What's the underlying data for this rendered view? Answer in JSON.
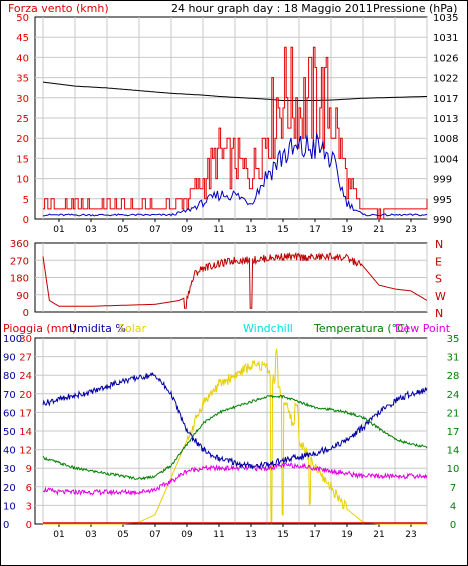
{
  "colors": {
    "wind": "#e00000",
    "gust": "#0000c0",
    "pressure": "#000000",
    "direction": "#c00000",
    "rain": "#e00000",
    "humidity": "#0000a0",
    "solar": "#e8d000",
    "windchill": "#00e0e0",
    "temperature": "#008000",
    "dewpoint": "#e000e0",
    "grid": "#c8c8c8"
  },
  "chart_data": [
    {
      "type": "line",
      "title": "24 hour graph day : 18 Maggio 2011",
      "ylabel": "Forza vento (kmh)",
      "y2label": "Pressione (hPa)",
      "ylim": [
        0,
        50
      ],
      "y2lim": [
        990,
        1035
      ],
      "y_ticks": [
        "0",
        "5",
        "10",
        "15",
        "20",
        "25",
        "30",
        "35",
        "40",
        "45",
        "50"
      ],
      "y2_ticks": [
        "990",
        "995",
        "999",
        "1004",
        "1008",
        "1013",
        "1017",
        "1022",
        "1026",
        "1031",
        "1035"
      ],
      "x_ticks": [
        "01",
        "03",
        "05",
        "07",
        "09",
        "11",
        "13",
        "15",
        "17",
        "19",
        "21",
        "23"
      ],
      "x": [
        0,
        2,
        4,
        6,
        8,
        9,
        10,
        11,
        12,
        13,
        14,
        15,
        16,
        17,
        18,
        19,
        20,
        22,
        24
      ],
      "series": [
        {
          "key": "wind",
          "values": [
            4,
            3,
            3,
            3,
            3,
            5,
            9,
            16,
            14,
            10,
            22,
            32,
            28,
            30,
            28,
            9,
            2,
            2,
            3
          ]
        },
        {
          "key": "gust",
          "values": [
            1,
            1,
            1,
            1,
            1,
            2,
            4,
            6,
            6,
            4,
            11,
            16,
            17,
            18,
            15,
            4,
            1,
            1,
            1
          ]
        },
        {
          "key": "pressure",
          "values": [
            1020.5,
            1019.6,
            1019.2,
            1018.6,
            1018.0,
            1017.8,
            1017.6,
            1017.3,
            1017.1,
            1016.9,
            1016.7,
            1016.4,
            1016.4,
            1016.4,
            1016.5,
            1016.7,
            1016.9,
            1017.1,
            1017.3
          ]
        }
      ]
    },
    {
      "type": "line",
      "ylim": [
        0,
        360
      ],
      "y_ticks": [
        "0",
        "90",
        "180",
        "270",
        "360"
      ],
      "compass": [
        "N",
        "W",
        "S",
        "E",
        "N"
      ],
      "x": [
        0,
        0.4,
        1,
        3,
        5,
        7,
        8.5,
        9,
        9.5,
        10,
        11,
        12,
        13,
        14,
        15,
        16,
        17,
        18,
        19,
        20,
        21,
        22,
        23,
        24
      ],
      "series": [
        {
          "key": "direction",
          "values": [
            290,
            60,
            30,
            30,
            35,
            40,
            60,
            80,
            200,
            230,
            250,
            270,
            270,
            280,
            290,
            285,
            285,
            290,
            280,
            240,
            140,
            120,
            110,
            60
          ]
        }
      ]
    },
    {
      "type": "line",
      "legend": [
        "Pioggia (mm)",
        "Umidita %",
        "Solar",
        "Windchill",
        "Temperatura (°C)",
        "Dew Point"
      ],
      "y_left_outer": [
        "0",
        "10",
        "20",
        "30",
        "40",
        "50",
        "60",
        "70",
        "80",
        "90",
        "100"
      ],
      "y_left_inner": [
        "0",
        "3",
        "6",
        "9",
        "12",
        "14",
        "17",
        "20",
        "24",
        "27",
        "30"
      ],
      "y_right": [
        "0",
        "4",
        "7",
        "10",
        "14",
        "17",
        "21",
        "24",
        "28",
        "31",
        "35"
      ],
      "humidity_range": [
        0,
        100
      ],
      "temperature_range": [
        0,
        35
      ],
      "solar_range": [
        0,
        10
      ],
      "x": [
        0,
        1,
        2,
        3,
        4,
        5,
        6,
        7,
        8,
        9,
        10,
        11,
        12,
        13,
        14,
        15,
        16,
        17,
        18,
        19,
        20,
        21,
        22,
        23,
        24
      ],
      "series": [
        {
          "key": "humidity",
          "values": [
            65,
            67,
            69,
            71,
            74,
            77,
            79,
            80,
            70,
            50,
            40,
            35,
            33,
            31,
            32,
            34,
            36,
            38,
            41,
            45,
            52,
            60,
            66,
            70,
            72
          ]
        },
        {
          "key": "temperature",
          "values": [
            12.5,
            11.5,
            10.5,
            10,
            9.5,
            9,
            8.5,
            9,
            11,
            15,
            19,
            21,
            22,
            23,
            24,
            24,
            23,
            22,
            21.5,
            21,
            20,
            18,
            16,
            15,
            14.5
          ]
        },
        {
          "key": "dewpoint",
          "values": [
            6.5,
            6,
            6,
            6,
            6,
            6,
            6,
            6.5,
            8,
            10,
            10.5,
            10.5,
            10.5,
            10.5,
            10.5,
            11,
            11,
            10.5,
            10,
            9.5,
            9,
            9,
            9,
            9,
            9
          ]
        },
        {
          "key": "solar",
          "values": [
            0,
            0,
            0,
            0,
            0,
            0,
            0.1,
            0.5,
            2.5,
            4.5,
            6.5,
            7.5,
            8.0,
            8.5,
            8.5,
            6.8,
            4.5,
            3.0,
            2.0,
            0.8,
            0.1,
            0,
            0,
            0,
            0
          ]
        },
        {
          "key": "rain",
          "values": [
            0,
            0,
            0,
            0,
            0,
            0,
            0,
            0,
            0,
            0,
            0,
            0,
            0,
            0,
            0,
            0,
            0,
            0,
            0,
            0,
            0,
            0,
            0,
            0,
            0
          ]
        }
      ]
    }
  ]
}
